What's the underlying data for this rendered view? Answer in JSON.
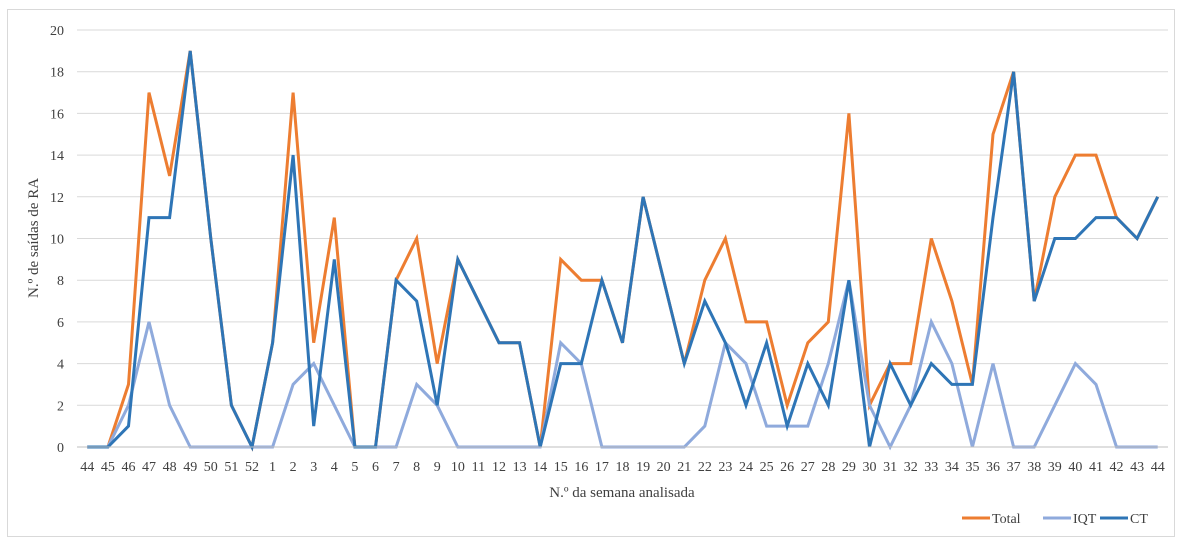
{
  "chart_data": {
    "type": "line",
    "title": "",
    "xlabel": "N.º da semana analisada",
    "ylabel": "N.º de saídas de RA",
    "ylim": [
      0,
      20
    ],
    "yticks": [
      0,
      2,
      4,
      6,
      8,
      10,
      12,
      14,
      16,
      18,
      20
    ],
    "grid": true,
    "legend_position": "bottom-right",
    "categories": [
      "44",
      "45",
      "46",
      "47",
      "48",
      "49",
      "50",
      "51",
      "52",
      "1",
      "2",
      "3",
      "4",
      "5",
      "6",
      "7",
      "8",
      "9",
      "10",
      "11",
      "12",
      "13",
      "14",
      "15",
      "16",
      "17",
      "18",
      "19",
      "20",
      "21",
      "22",
      "23",
      "24",
      "25",
      "26",
      "27",
      "28",
      "29",
      "30",
      "31",
      "32",
      "33",
      "34",
      "35",
      "36",
      "37",
      "38",
      "39",
      "40",
      "41",
      "42",
      "43",
      "44"
    ],
    "series": [
      {
        "name": "Total",
        "color": "#ed7d31",
        "values": [
          0,
          0,
          3,
          17,
          13,
          19,
          10,
          2,
          0,
          5,
          17,
          5,
          11,
          0,
          0,
          8,
          10,
          4,
          9,
          7,
          5,
          5,
          0,
          9,
          8,
          8,
          5,
          12,
          8,
          4,
          8,
          10,
          6,
          6,
          2,
          5,
          6,
          16,
          2,
          4,
          4,
          10,
          7,
          3,
          15,
          18,
          7,
          12,
          14,
          14,
          11,
          10,
          12
        ]
      },
      {
        "name": "IQT",
        "color": "#8faadc",
        "values": [
          0,
          0,
          2,
          6,
          2,
          0,
          0,
          0,
          0,
          0,
          3,
          4,
          2,
          0,
          0,
          0,
          3,
          2,
          0,
          0,
          0,
          0,
          0,
          5,
          4,
          0,
          0,
          0,
          0,
          0,
          1,
          5,
          4,
          1,
          1,
          1,
          4,
          8,
          2,
          0,
          2,
          6,
          4,
          0,
          4,
          0,
          0,
          2,
          4,
          3,
          0,
          0,
          0
        ]
      },
      {
        "name": "CT",
        "color": "#2e75b6",
        "values": [
          0,
          0,
          1,
          11,
          11,
          19,
          10,
          2,
          0,
          5,
          14,
          1,
          9,
          0,
          0,
          8,
          7,
          2,
          9,
          7,
          5,
          5,
          0,
          4,
          4,
          8,
          5,
          12,
          8,
          4,
          7,
          5,
          2,
          5,
          1,
          4,
          2,
          8,
          0,
          4,
          2,
          4,
          3,
          3,
          11,
          18,
          7,
          10,
          10,
          11,
          11,
          10,
          12
        ]
      }
    ]
  }
}
